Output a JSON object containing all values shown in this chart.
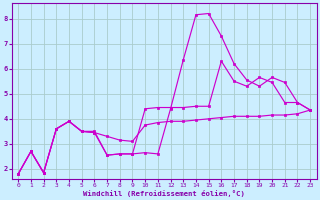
{
  "xlabel": "Windchill (Refroidissement éolien,°C)",
  "background_color": "#cceeff",
  "grid_color": "#aacccc",
  "line_color": "#cc00cc",
  "spine_color": "#8800aa",
  "xlim": [
    -0.5,
    23.5
  ],
  "ylim": [
    1.6,
    8.6
  ],
  "yticks": [
    2,
    3,
    4,
    5,
    6,
    7,
    8
  ],
  "xticks": [
    0,
    1,
    2,
    3,
    4,
    5,
    6,
    7,
    8,
    9,
    10,
    11,
    12,
    13,
    14,
    15,
    16,
    17,
    18,
    19,
    20,
    21,
    22,
    23
  ],
  "line1_x": [
    0,
    1,
    2,
    3,
    4,
    5,
    6,
    7,
    8,
    9,
    10,
    11,
    12,
    13,
    14,
    15,
    16,
    17,
    18,
    19,
    20,
    21,
    22,
    23
  ],
  "line1_y": [
    1.8,
    2.7,
    1.85,
    3.6,
    3.9,
    3.5,
    3.5,
    2.55,
    2.6,
    2.6,
    2.65,
    2.6,
    4.4,
    6.35,
    8.15,
    8.2,
    7.3,
    6.2,
    5.55,
    5.3,
    5.65,
    5.45,
    4.65,
    4.35
  ],
  "line2_x": [
    0,
    1,
    2,
    3,
    4,
    5,
    6,
    7,
    8,
    9,
    10,
    11,
    12,
    13,
    14,
    15,
    16,
    17,
    18,
    19,
    20,
    21,
    22,
    23
  ],
  "line2_y": [
    1.8,
    2.7,
    1.85,
    3.6,
    3.9,
    3.5,
    3.45,
    3.3,
    3.15,
    3.1,
    3.75,
    3.85,
    3.9,
    3.9,
    3.95,
    4.0,
    4.05,
    4.1,
    4.1,
    4.1,
    4.15,
    4.15,
    4.2,
    4.35
  ],
  "line3_x": [
    0,
    1,
    2,
    3,
    4,
    5,
    6,
    7,
    8,
    9,
    10,
    11,
    12,
    13,
    14,
    15,
    16,
    17,
    18,
    19,
    20,
    21,
    22,
    23
  ],
  "line3_y": [
    1.8,
    2.7,
    1.85,
    3.6,
    3.9,
    3.5,
    3.45,
    2.55,
    2.6,
    2.6,
    4.4,
    4.45,
    4.45,
    4.45,
    4.5,
    4.5,
    6.3,
    5.5,
    5.3,
    5.65,
    5.45,
    4.65,
    4.65,
    4.35
  ]
}
